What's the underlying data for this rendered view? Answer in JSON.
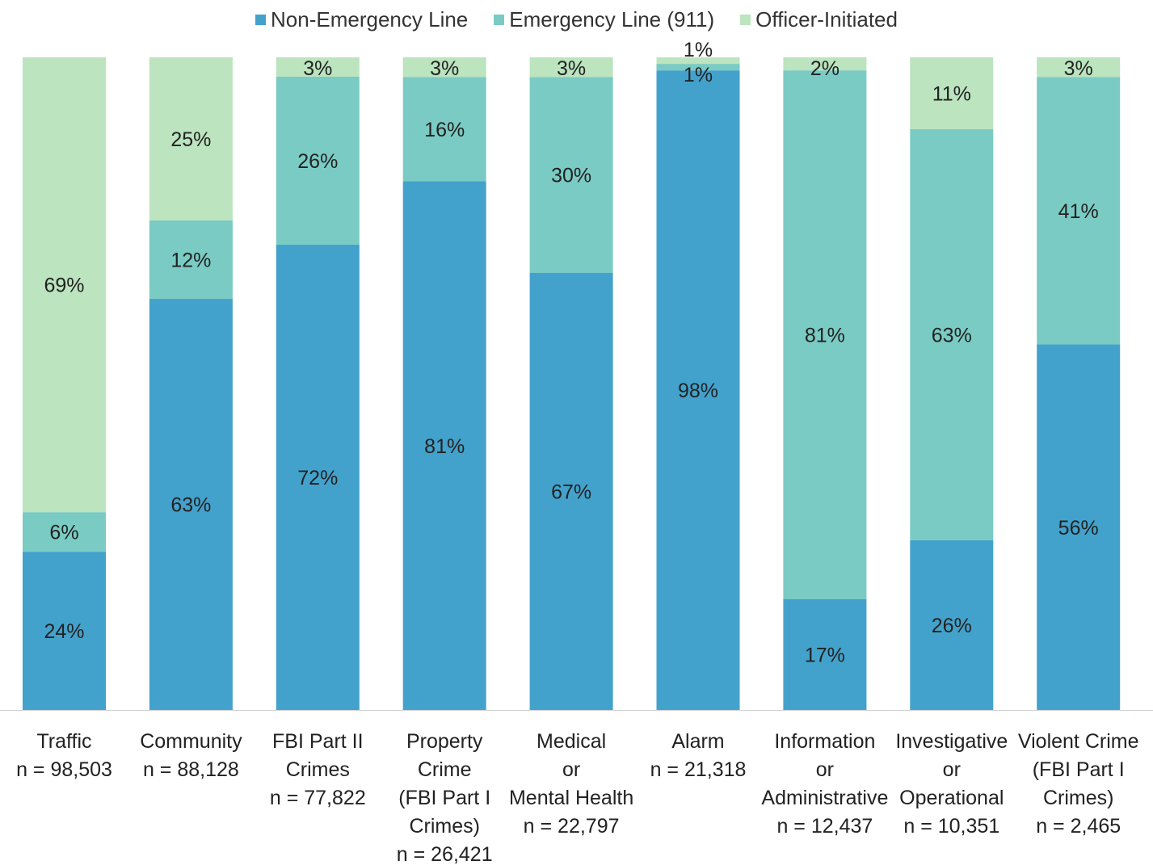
{
  "chart_data": {
    "type": "bar",
    "stacked": true,
    "normalized": true,
    "legend_position": "top",
    "grid": false,
    "ylim": [
      0,
      100
    ],
    "title": "",
    "xlabel": "",
    "ylabel": "",
    "categories": [
      "Traffic",
      "Community",
      "FBI Part II Crimes",
      "Property Crime (FBI Part I Crimes)",
      "Medical or Mental Health",
      "Alarm",
      "Information or Administrative",
      "Investigative or Operational",
      "Violent Crime (FBI Part I Crimes)"
    ],
    "category_label_lines": [
      [
        "Traffic",
        "n = 98,503"
      ],
      [
        "Community",
        "n = 88,128"
      ],
      [
        "FBI Part II",
        "Crimes",
        "n = 77,822"
      ],
      [
        "Property",
        "Crime",
        "(FBI Part I",
        "Crimes)",
        "n = 26,421"
      ],
      [
        "Medical",
        "or",
        "Mental Health",
        "n = 22,797"
      ],
      [
        "Alarm",
        "n = 21,318"
      ],
      [
        "Information",
        "or",
        "Administrative",
        "n = 12,437"
      ],
      [
        "Investigative",
        "or",
        "Operational",
        "n = 10,351"
      ],
      [
        "Violent Crime",
        "(FBI Part I",
        "Crimes)",
        "n = 2,465"
      ]
    ],
    "series": [
      {
        "name": "Non-Emergency Line",
        "color": "#43a2cc",
        "values": [
          24,
          63,
          72,
          81,
          67,
          98,
          17,
          26,
          56
        ],
        "labels": [
          "24%",
          "63%",
          "72%",
          "81%",
          "67%",
          "98%",
          "17%",
          "26%",
          "56%"
        ]
      },
      {
        "name": "Emergency Line (911)",
        "color": "#7acbc3",
        "values": [
          6,
          12,
          26,
          16,
          30,
          1,
          81,
          63,
          41
        ],
        "labels": [
          "6%",
          "12%",
          "26%",
          "16%",
          "30%",
          "1%",
          "81%",
          "63%",
          "41%"
        ]
      },
      {
        "name": "Officer-Initiated",
        "color": "#bbe4bf",
        "values": [
          69,
          25,
          3,
          3,
          3,
          1,
          2,
          11,
          3
        ],
        "labels": [
          "69%",
          "25%",
          "3%",
          "3%",
          "3%",
          "1%",
          "2%",
          "11%",
          "3%"
        ]
      }
    ]
  }
}
